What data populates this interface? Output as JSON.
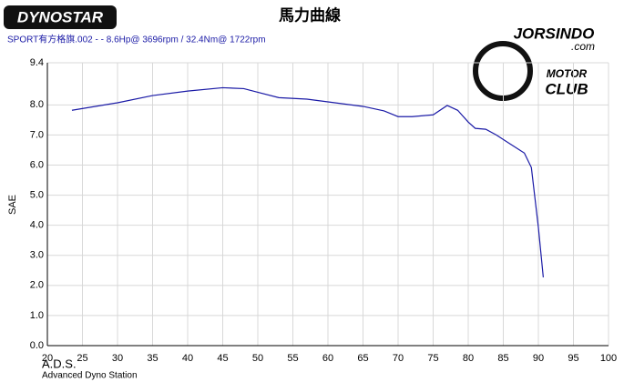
{
  "chart_data": {
    "type": "line",
    "title": "馬力曲線",
    "subtitle": "SPORT有方格旗.002 -  - 8.6Hp@ 3696rpm / 32.4Nm@ 1722rpm",
    "ylabel": "SAE",
    "logo_left": "DYNOSTAR",
    "logo_right": [
      "JORSINDO",
      ".com",
      "MOTOR",
      "CLUB"
    ],
    "footer": [
      "A.D.S.",
      "Advanced Dyno Station"
    ],
    "x": [
      23.5,
      30,
      35,
      40,
      45,
      48,
      50,
      53,
      57,
      60,
      65,
      68,
      70,
      72,
      75,
      77,
      78.5,
      80,
      81,
      82.5,
      84,
      86,
      88,
      89,
      90,
      90.7
    ],
    "series": [
      {
        "name": "SPORT有方格旗.002",
        "color": "#1a1aa6",
        "values": [
          7.82,
          8.07,
          8.31,
          8.46,
          8.57,
          8.54,
          8.42,
          8.24,
          8.19,
          8.1,
          7.95,
          7.8,
          7.61,
          7.61,
          7.67,
          7.98,
          7.82,
          7.43,
          7.22,
          7.19,
          7.0,
          6.7,
          6.4,
          5.92,
          3.93,
          2.27
        ]
      }
    ],
    "xlim": [
      20,
      100
    ],
    "xticks": [
      20,
      25,
      30,
      35,
      40,
      45,
      50,
      55,
      60,
      65,
      70,
      75,
      80,
      85,
      90,
      95,
      100
    ],
    "ylim": [
      0,
      9.4
    ],
    "yticks": [
      {
        "value": 0,
        "label": "0.0"
      },
      {
        "value": 1,
        "label": "1.0"
      },
      {
        "value": 2,
        "label": "2.0"
      },
      {
        "value": 3,
        "label": "3.0"
      },
      {
        "value": 4,
        "label": "4.0"
      },
      {
        "value": 5,
        "label": "5.0"
      },
      {
        "value": 6,
        "label": "6.0"
      },
      {
        "value": 7,
        "label": "7.0"
      },
      {
        "value": 8,
        "label": "8.0"
      },
      {
        "value": 9.4,
        "label": "9.4"
      }
    ],
    "grid": true
  }
}
